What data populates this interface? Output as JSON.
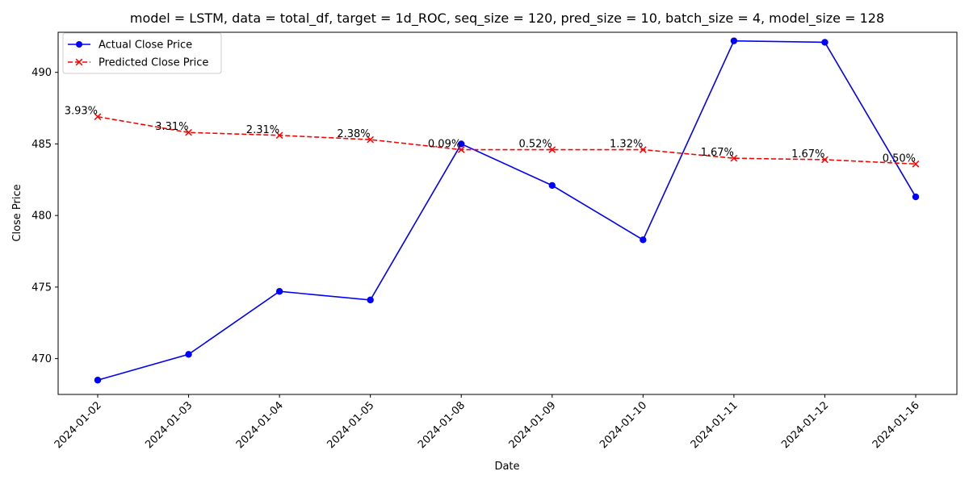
{
  "chart_data": {
    "type": "line",
    "title": "model = LSTM, data = total_df, target = 1d_ROC, seq_size = 120, pred_size = 10, batch_size = 4, model_size = 128",
    "xlabel": "Date",
    "ylabel": "Close Price",
    "x": [
      "2024-01-02",
      "2024-01-03",
      "2024-01-04",
      "2024-01-05",
      "2024-01-08",
      "2024-01-09",
      "2024-01-10",
      "2024-01-11",
      "2024-01-12",
      "2024-01-16"
    ],
    "ylim": [
      467.5,
      492.8
    ],
    "yticks": [
      470,
      475,
      480,
      485,
      490
    ],
    "grid": false,
    "legend_position": "upper-left",
    "series": [
      {
        "name": "Actual Close Price",
        "color": "#0000ff",
        "line_style": "solid",
        "marker": "circle",
        "values": [
          468.5,
          470.3,
          474.7,
          474.1,
          485.0,
          482.1,
          478.3,
          492.2,
          492.1,
          481.3
        ]
      },
      {
        "name": "Predicted Close Price",
        "color": "#ff0000",
        "line_style": "dashed",
        "marker": "x",
        "values": [
          486.9,
          485.8,
          485.6,
          485.3,
          484.6,
          484.6,
          484.6,
          484.0,
          483.9,
          483.6
        ],
        "annotations": [
          "3.93%",
          "3.31%",
          "2.31%",
          "2.38%",
          "0.09%",
          "0.52%",
          "1.32%",
          "1.67%",
          "1.67%",
          "0.50%"
        ]
      }
    ]
  }
}
